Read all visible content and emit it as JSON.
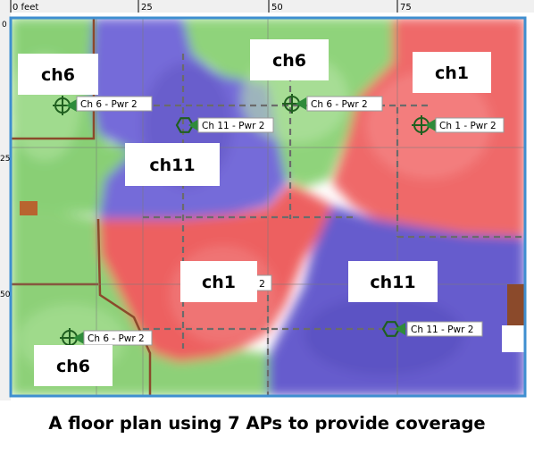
{
  "ruler": {
    "top_ticks": [
      "0 feet",
      "25",
      "50",
      "75"
    ],
    "left_ticks": [
      "0",
      "25",
      "50"
    ]
  },
  "colors": {
    "ch1": "#e84545",
    "ch6": "#5fbf4f",
    "ch11": "#5a4fc9",
    "ap_marker": "#2e8b3a"
  },
  "channel_callouts": [
    {
      "id": "c1",
      "text": "ch6"
    },
    {
      "id": "c2",
      "text": "ch6"
    },
    {
      "id": "c3",
      "text": "ch1"
    },
    {
      "id": "c4",
      "text": "ch11"
    },
    {
      "id": "c5",
      "text": "ch1"
    },
    {
      "id": "c6",
      "text": "ch11"
    },
    {
      "id": "c7",
      "text": "ch6"
    }
  ],
  "access_points": [
    {
      "id": "ap1",
      "label": "Ch 6 - Pwr 2"
    },
    {
      "id": "ap2",
      "label": "Ch 11 - Pwr 2"
    },
    {
      "id": "ap3",
      "label": "Ch 6 - Pwr 2"
    },
    {
      "id": "ap4",
      "label": "Ch 1 - Pwr 2"
    },
    {
      "id": "ap5",
      "label": "Ch 11 - Pwr 2"
    },
    {
      "id": "ap6",
      "label": "Ch 6 - Pwr 2"
    }
  ],
  "partial_label": "r 2",
  "caption": "A floor plan using 7 APs to provide coverage"
}
